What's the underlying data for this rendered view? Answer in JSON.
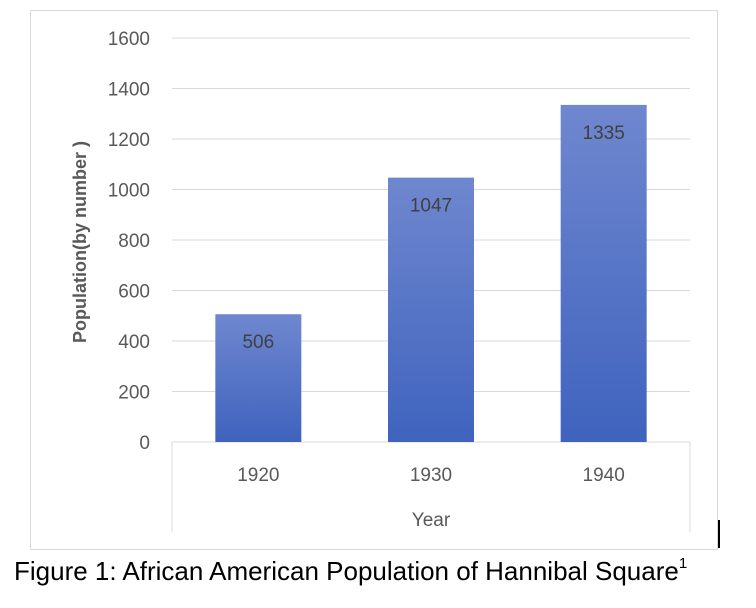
{
  "chart_data": {
    "type": "bar",
    "categories": [
      "1920",
      "1930",
      "1940"
    ],
    "values": [
      506,
      1047,
      1335
    ],
    "data_labels": [
      "506",
      "1047",
      "1335"
    ],
    "xlabel": "Year",
    "ylabel": "Population(by number )",
    "ylim": [
      0,
      1600
    ],
    "yticks": [
      0,
      200,
      400,
      600,
      800,
      1000,
      1200,
      1400,
      1600
    ],
    "grid": "horizontal",
    "legend": "none",
    "bar_color_top": "#6f87cf",
    "bar_color_bottom": "#3f63be",
    "gridline_color": "#d9d9d9"
  },
  "caption": {
    "text": "Figure 1: African American Population of Hannibal Square",
    "footnote": "1"
  }
}
